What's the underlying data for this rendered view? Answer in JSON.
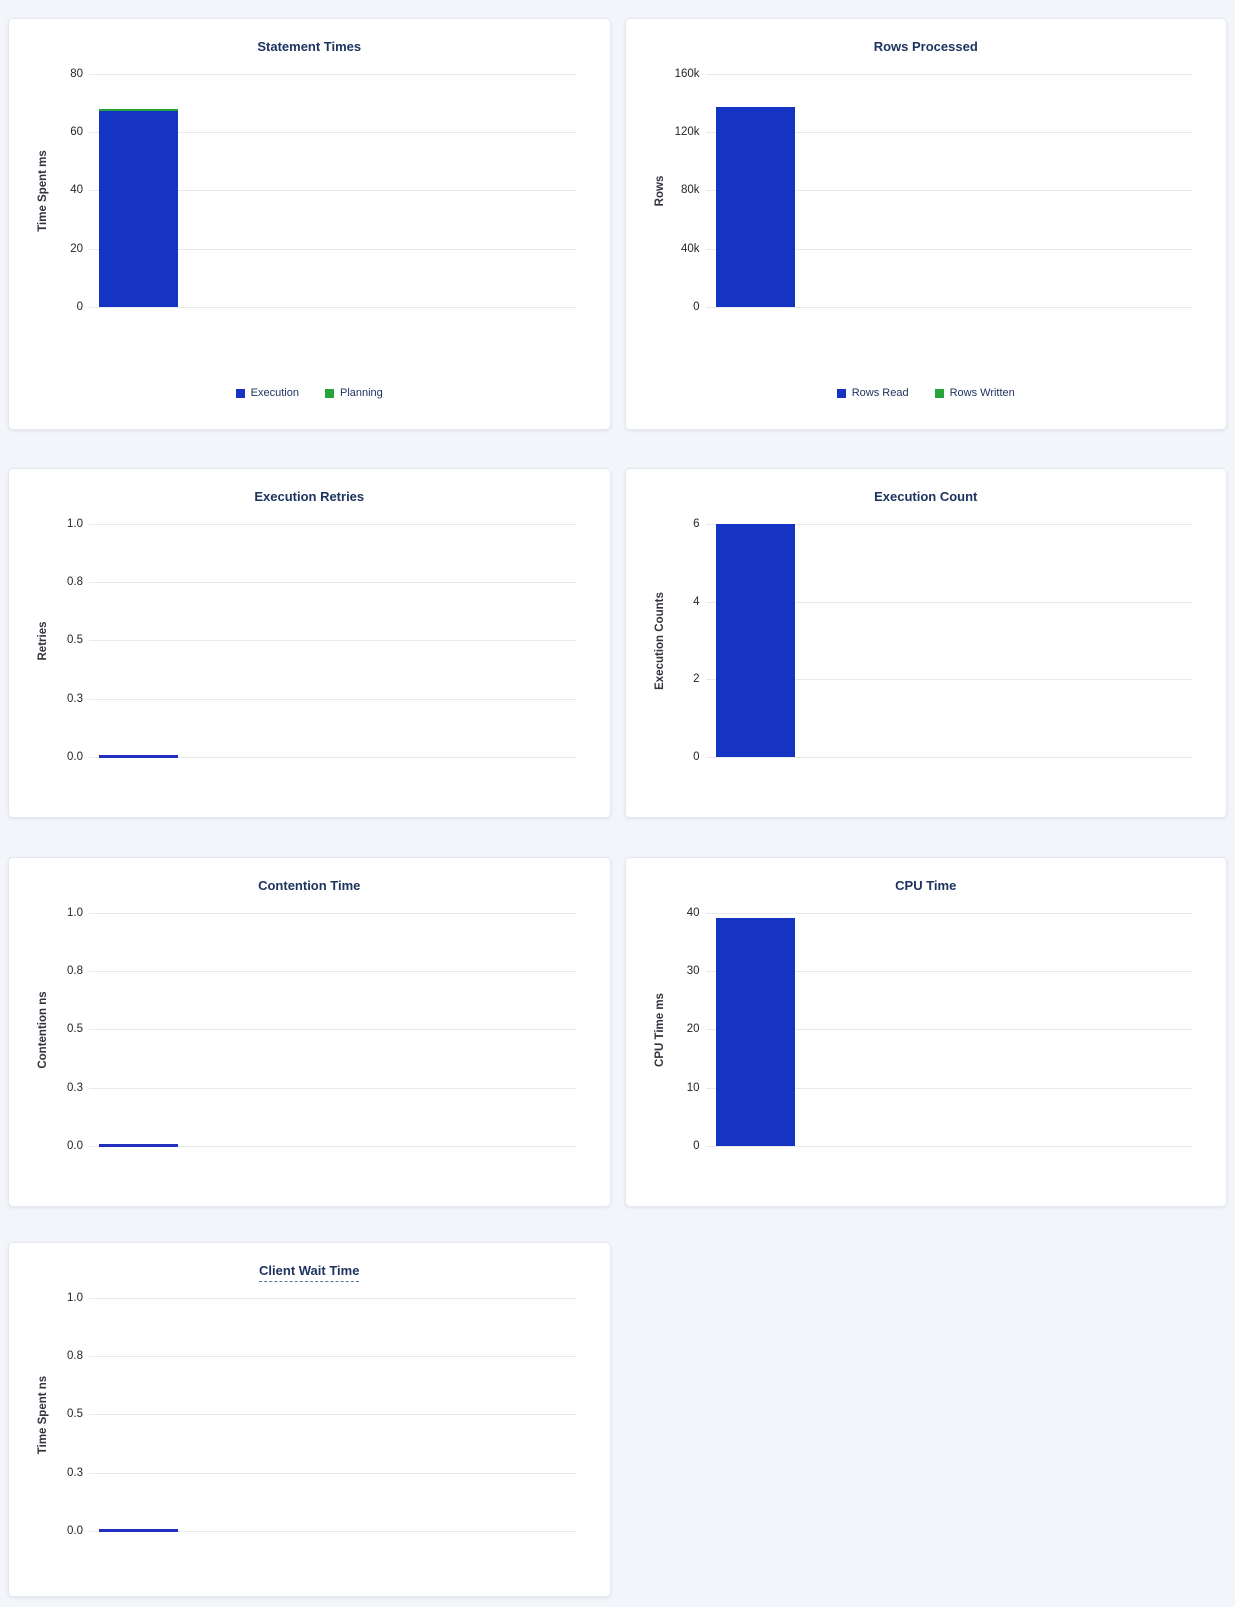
{
  "page": {
    "background": "#f3f5fa"
  },
  "colors": {
    "execution_blue": "#1634c4",
    "planning_green": "#27a33c",
    "zero_line_blue": "#2231bd",
    "title_navy": "#1e3460",
    "gridline_gray": "#e9e9eb",
    "panel_white": "#ffffff"
  },
  "chart_data": [
    {
      "id": "statement-times",
      "type": "bar",
      "title": "Statement Times",
      "ylabel": "Time Spent ms",
      "ylim": [
        0,
        80
      ],
      "ymax": 80,
      "grid": true,
      "yticks": [
        {
          "value": 0,
          "label": "0"
        },
        {
          "value": 20,
          "label": "20"
        },
        {
          "value": 40,
          "label": "40"
        },
        {
          "value": 60,
          "label": "60"
        },
        {
          "value": 80,
          "label": "80"
        }
      ],
      "stacked": true,
      "series": [
        {
          "name": "Execution",
          "value": 67.2,
          "color_key": "execution_blue"
        },
        {
          "name": "Planning",
          "value": 0.7,
          "color_key": "planning_green"
        }
      ],
      "legend": [
        {
          "label": "Execution",
          "color_key": "execution_blue"
        },
        {
          "label": "Planning",
          "color_key": "planning_green"
        }
      ],
      "legend_position": "bottom",
      "title_dashed_underline": false
    },
    {
      "id": "rows-processed",
      "type": "bar",
      "title": "Rows Processed",
      "ylabel": "Rows",
      "ylim": [
        0,
        160000
      ],
      "ymax": 160000,
      "grid": true,
      "yticks": [
        {
          "value": 0,
          "label": "0"
        },
        {
          "value": 40000,
          "label": "40k"
        },
        {
          "value": 80000,
          "label": "80k"
        },
        {
          "value": 120000,
          "label": "120k"
        },
        {
          "value": 160000,
          "label": "160k"
        }
      ],
      "stacked": true,
      "series": [
        {
          "name": "Rows Read",
          "value": 137000,
          "color_key": "execution_blue"
        },
        {
          "name": "Rows Written",
          "value": 0,
          "color_key": "planning_green"
        }
      ],
      "legend": [
        {
          "label": "Rows Read",
          "color_key": "execution_blue"
        },
        {
          "label": "Rows Written",
          "color_key": "planning_green"
        }
      ],
      "legend_position": "bottom",
      "title_dashed_underline": false
    },
    {
      "id": "execution-retries",
      "type": "bar",
      "title": "Execution Retries",
      "ylabel": "Retries",
      "ylim": [
        0,
        1
      ],
      "ymax": 1,
      "grid": true,
      "yticks": [
        {
          "value": 0,
          "label": "0.0"
        },
        {
          "value": 0.25,
          "label": "0.3"
        },
        {
          "value": 0.5,
          "label": "0.5"
        },
        {
          "value": 0.75,
          "label": "0.8"
        },
        {
          "value": 1,
          "label": "1.0"
        }
      ],
      "stacked": false,
      "series": [
        {
          "value": 0,
          "color_key": "execution_blue"
        }
      ],
      "legend": null,
      "title_dashed_underline": false
    },
    {
      "id": "execution-count",
      "type": "bar",
      "title": "Execution Count",
      "ylabel": "Execution Counts",
      "ylim": [
        0,
        6
      ],
      "ymax": 6,
      "grid": true,
      "yticks": [
        {
          "value": 0,
          "label": "0"
        },
        {
          "value": 2,
          "label": "2"
        },
        {
          "value": 4,
          "label": "4"
        },
        {
          "value": 6,
          "label": "6"
        }
      ],
      "stacked": false,
      "series": [
        {
          "value": 6,
          "color_key": "execution_blue"
        }
      ],
      "legend": null,
      "title_dashed_underline": false
    },
    {
      "id": "contention-time",
      "type": "bar",
      "title": "Contention Time",
      "ylabel": "Contention ns",
      "ylim": [
        0,
        1
      ],
      "ymax": 1,
      "grid": true,
      "yticks": [
        {
          "value": 0,
          "label": "0.0"
        },
        {
          "value": 0.25,
          "label": "0.3"
        },
        {
          "value": 0.5,
          "label": "0.5"
        },
        {
          "value": 0.75,
          "label": "0.8"
        },
        {
          "value": 1,
          "label": "1.0"
        }
      ],
      "stacked": false,
      "series": [
        {
          "value": 0,
          "color_key": "execution_blue"
        }
      ],
      "legend": null,
      "title_dashed_underline": false
    },
    {
      "id": "cpu-time",
      "type": "bar",
      "title": "CPU Time",
      "ylabel": "CPU Time ms",
      "ylim": [
        0,
        40
      ],
      "ymax": 40,
      "grid": true,
      "yticks": [
        {
          "value": 0,
          "label": "0"
        },
        {
          "value": 10,
          "label": "10"
        },
        {
          "value": 20,
          "label": "20"
        },
        {
          "value": 30,
          "label": "30"
        },
        {
          "value": 40,
          "label": "40"
        }
      ],
      "stacked": false,
      "series": [
        {
          "value": 39.2,
          "color_key": "execution_blue"
        }
      ],
      "legend": null,
      "title_dashed_underline": false
    },
    {
      "id": "client-wait-time",
      "type": "bar",
      "title": "Client Wait Time",
      "ylabel": "Time Spent ns",
      "ylim": [
        0,
        1
      ],
      "ymax": 1,
      "grid": true,
      "yticks": [
        {
          "value": 0,
          "label": "0.0"
        },
        {
          "value": 0.25,
          "label": "0.3"
        },
        {
          "value": 0.5,
          "label": "0.5"
        },
        {
          "value": 0.75,
          "label": "0.8"
        },
        {
          "value": 1,
          "label": "1.0"
        }
      ],
      "stacked": false,
      "series": [
        {
          "value": 0,
          "color_key": "execution_blue"
        }
      ],
      "legend": null,
      "title_dashed_underline": true
    }
  ]
}
